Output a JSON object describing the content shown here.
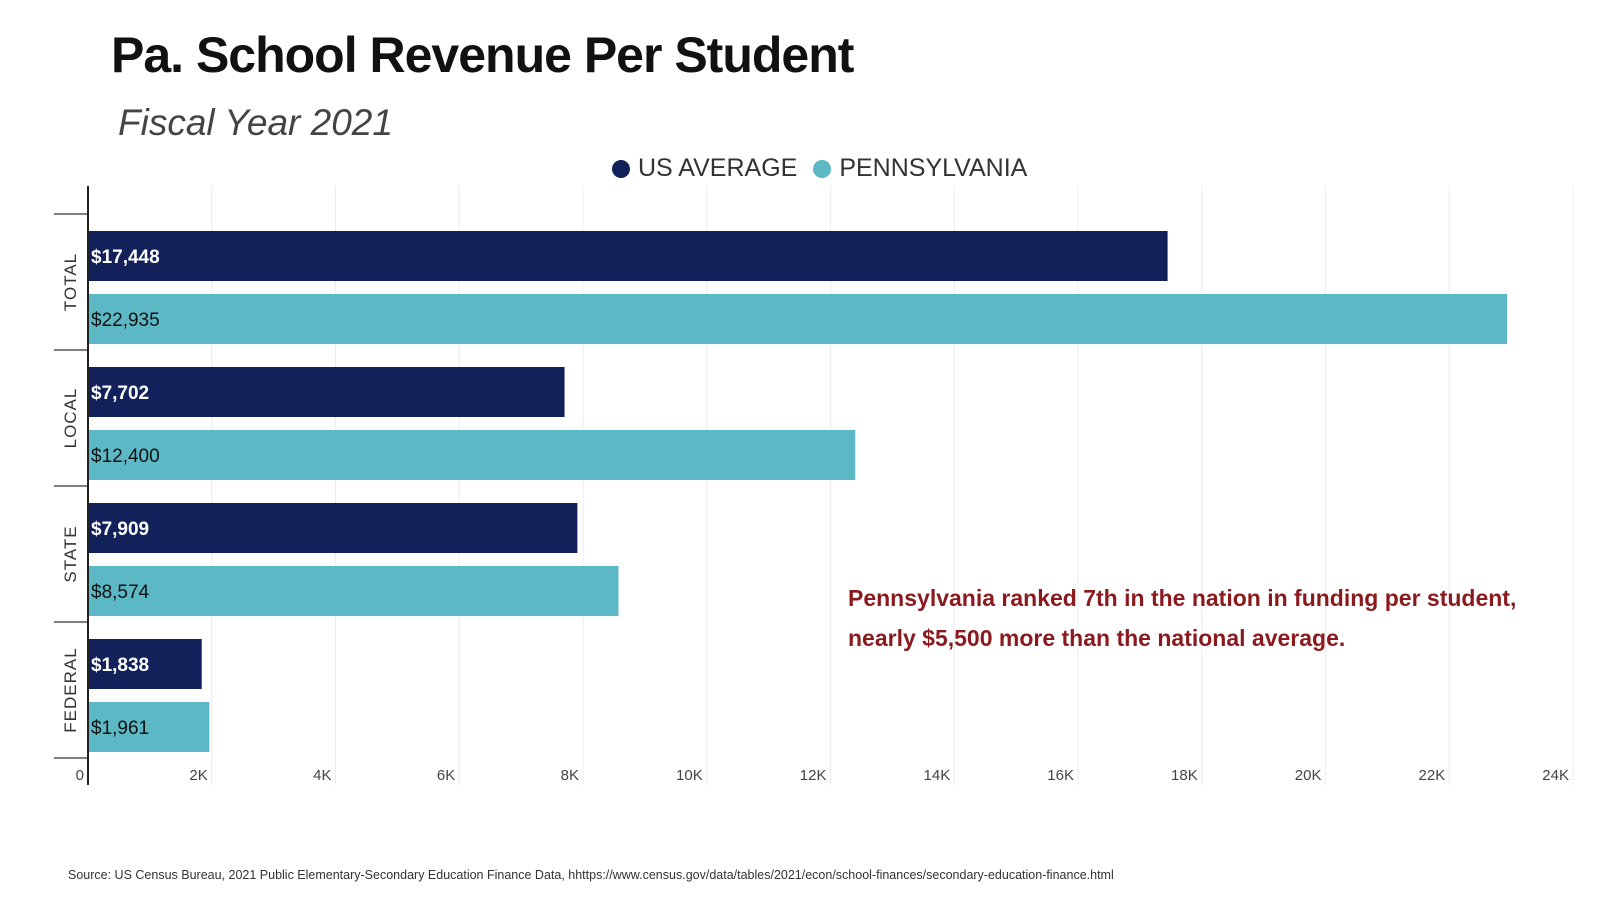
{
  "chart_data": {
    "type": "bar",
    "orientation": "horizontal",
    "title": "Pa. School Revenue Per Student",
    "subtitle": "Fiscal Year 2021",
    "categories": [
      "TOTAL",
      "LOCAL",
      "STATE",
      "FEDERAL"
    ],
    "series": [
      {
        "name": "US AVERAGE",
        "color": "#13215a",
        "values": [
          17448,
          7702,
          7909,
          1838
        ],
        "labels": [
          "$17,448",
          "$7,702",
          "$7,909",
          "$1,838"
        ]
      },
      {
        "name": "PENNSYLVANIA",
        "color": "#5bb8c4",
        "values": [
          22935,
          12400,
          8574,
          1961
        ],
        "labels": [
          "$22,935",
          "$12,400",
          "$8,574",
          "$1,961"
        ]
      }
    ],
    "xlim": [
      0,
      24000
    ],
    "xticks": [
      0,
      2000,
      4000,
      6000,
      8000,
      10000,
      12000,
      14000,
      16000,
      18000,
      20000,
      22000,
      24000
    ],
    "xtick_labels": [
      "0",
      "2K",
      "4K",
      "6K",
      "8K",
      "10K",
      "12K",
      "14K",
      "16K",
      "18K",
      "20K",
      "22K",
      "24K"
    ],
    "grid": true,
    "legend_position": "top-center",
    "annotation": [
      "Pennsylvania ranked 7th in the nation in funding per student,",
      "nearly $5,500 more than the national average."
    ],
    "annotation_color": "#8b1a1f"
  },
  "source": "Source: US Census Bureau, 2021 Public Elementary-Secondary Education Finance Data, hhttps://www.census.gov/data/tables/2021/econ/school-finances/secondary-education-finance.html"
}
